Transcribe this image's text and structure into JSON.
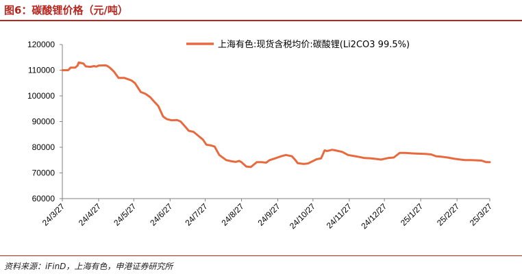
{
  "figure": {
    "title": "图6：碳酸锂价格（元/吨）",
    "source": "资料来源：iFinD，上海有色，申港证券研究所"
  },
  "colors": {
    "accent": "#b5261e",
    "series": "#e8693e"
  },
  "chart_data": {
    "type": "line",
    "title": "",
    "xlabel": "",
    "ylabel": "",
    "ylim": [
      60000,
      120000
    ],
    "yticks": [
      60000,
      70000,
      80000,
      90000,
      100000,
      110000,
      120000
    ],
    "yticklabels": [
      "60000",
      "70000",
      "80000",
      "90000",
      "100000",
      "110000",
      "120000"
    ],
    "xticklabels": [
      "24/3/27",
      "24/4/27",
      "24/5/27",
      "24/6/27",
      "24/7/27",
      "24/8/27",
      "24/9/27",
      "24/10/27",
      "24/11/27",
      "24/12/27",
      "25/1/27",
      "25/2/27",
      "25/3/27"
    ],
    "grid": false,
    "legend": "top",
    "series": [
      {
        "name": "上海有色:现货含税均价:碳酸锂(Li2CO3 99.5%)",
        "x": [
          "2024-03-27",
          "2024-04-01",
          "2024-04-03",
          "2024-04-07",
          "2024-04-09",
          "2024-04-10",
          "2024-04-12",
          "2024-04-14",
          "2024-04-16",
          "2024-04-20",
          "2024-04-23",
          "2024-04-25",
          "2024-04-27",
          "2024-05-03",
          "2024-05-05",
          "2024-05-07",
          "2024-05-10",
          "2024-05-14",
          "2024-05-19",
          "2024-05-22",
          "2024-05-25",
          "2024-05-28",
          "2024-06-02",
          "2024-06-06",
          "2024-06-10",
          "2024-06-13",
          "2024-06-17",
          "2024-06-21",
          "2024-06-24",
          "2024-06-28",
          "2024-07-03",
          "2024-07-06",
          "2024-07-09",
          "2024-07-13",
          "2024-07-17",
          "2024-07-21",
          "2024-07-25",
          "2024-07-28",
          "2024-08-01",
          "2024-08-04",
          "2024-08-08",
          "2024-08-14",
          "2024-08-19",
          "2024-08-22",
          "2024-08-25",
          "2024-08-27",
          "2024-08-31",
          "2024-09-04",
          "2024-09-09",
          "2024-09-13",
          "2024-09-17",
          "2024-09-20",
          "2024-09-25",
          "2024-09-30",
          "2024-10-04",
          "2024-10-09",
          "2024-10-12",
          "2024-10-14",
          "2024-10-19",
          "2024-10-23",
          "2024-10-25",
          "2024-10-30",
          "2024-11-03",
          "2024-11-06",
          "2024-11-08",
          "2024-11-12",
          "2024-11-14",
          "2024-11-18",
          "2024-11-21",
          "2024-11-26",
          "2024-12-02",
          "2024-12-06",
          "2024-12-10",
          "2024-12-15",
          "2024-12-19",
          "2024-12-24",
          "2024-12-30",
          "2025-01-04",
          "2025-01-09",
          "2025-01-14",
          "2025-01-20",
          "2025-01-25",
          "2025-01-31",
          "2025-02-05",
          "2025-02-09",
          "2025-02-14",
          "2025-02-19",
          "2025-02-25",
          "2025-03-02",
          "2025-03-06",
          "2025-03-11",
          "2025-03-16",
          "2025-03-20",
          "2025-03-24",
          "2025-03-27"
        ],
        "values": [
          110000,
          110000,
          111000,
          111000,
          111800,
          113000,
          112800,
          112600,
          111500,
          111300,
          111600,
          111400,
          111800,
          111900,
          111500,
          110800,
          109500,
          107000,
          107000,
          106500,
          106000,
          105000,
          101500,
          100800,
          99500,
          98000,
          96000,
          92000,
          91000,
          90500,
          90600,
          90000,
          88500,
          86400,
          86000,
          84500,
          83000,
          81000,
          80700,
          80300,
          77000,
          75000,
          74500,
          74300,
          74700,
          74200,
          72500,
          72300,
          74200,
          74200,
          74000,
          75000,
          75700,
          76500,
          77000,
          76500,
          75000,
          73800,
          73500,
          73700,
          74200,
          75300,
          75700,
          78800,
          78500,
          79000,
          78900,
          78500,
          78200,
          77000,
          76500,
          76200,
          75800,
          75700,
          75500,
          75200,
          75800,
          76000,
          77800,
          77800,
          77600,
          77500,
          77400,
          77200,
          76500,
          76300,
          76000,
          75500,
          75200,
          75000,
          75000,
          74900,
          74800,
          74200,
          74200
        ]
      }
    ]
  }
}
